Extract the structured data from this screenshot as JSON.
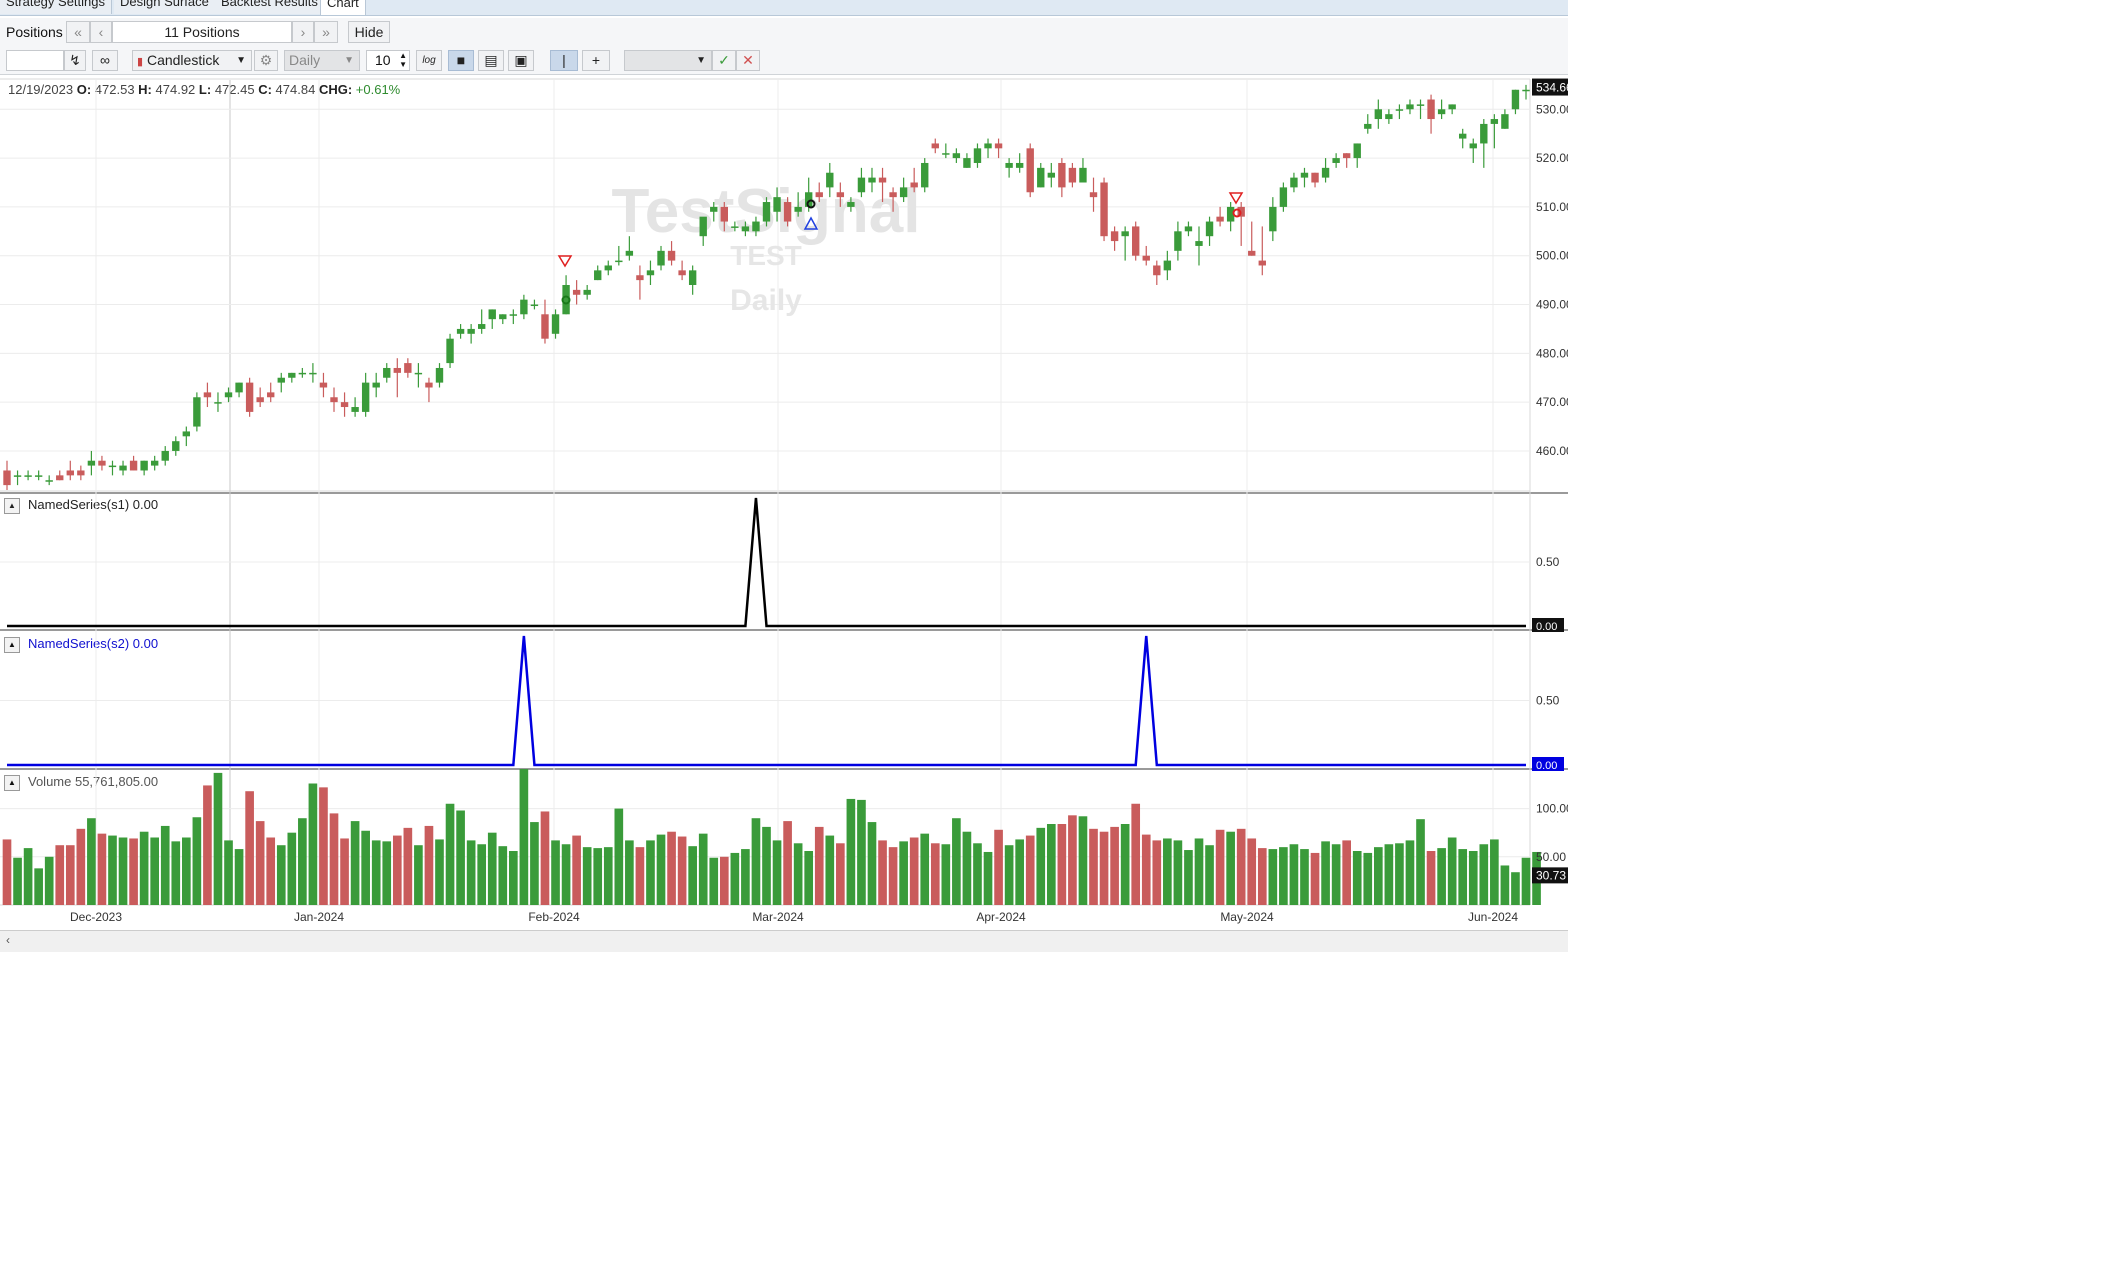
{
  "tabs": [
    {
      "label": "Strategy Settings"
    },
    {
      "label": "Design Surface"
    },
    {
      "label": "Backtest Results"
    },
    {
      "label": "Chart"
    }
  ],
  "positions": {
    "label": "Positions",
    "count_text": "11 Positions",
    "hide_label": "Hide"
  },
  "toolbar": {
    "chart_style": "Candlestick",
    "scale": "Daily",
    "bars_value": "10",
    "log_label": "log"
  },
  "ohlc": {
    "date": "12/19/2023",
    "o_label": "O:",
    "o": "472.53",
    "h_label": "H:",
    "h": "474.92",
    "l_label": "L:",
    "l": "472.45",
    "c_label": "C:",
    "c": "474.84",
    "chg_label": "CHG:",
    "chg": "+0.61%"
  },
  "watermark": {
    "line1": "TestSignal",
    "line2": "TEST",
    "line3": "Daily"
  },
  "price_axis": {
    "ticks": [
      "530.00",
      "520.00",
      "510.00",
      "500.00",
      "490.00",
      "480.00",
      "470.00",
      "460.00"
    ],
    "last": "534.66"
  },
  "panels": {
    "s1": {
      "label": "NamedSeries(s1) 0.00",
      "tick": "0.50",
      "last": "0.00"
    },
    "s2": {
      "label": "NamedSeries(s2) 0.00",
      "tick": "0.50",
      "last": "0.00"
    },
    "volume": {
      "label": "Volume 55,761,805.00",
      "ticks": [
        "100.00",
        "50.00"
      ],
      "last": "30.73"
    }
  },
  "x_axis": [
    "Dec-2023",
    "Jan-2024",
    "Feb-2024",
    "Mar-2024",
    "Apr-2024",
    "May-2024",
    "Jun-2024"
  ],
  "colors": {
    "up": "#3a9b3a",
    "down": "#c95c5c",
    "s1": "#000000",
    "s2": "#0000e0"
  },
  "chart_data": {
    "type": "candlestick",
    "ylim": [
      452,
      536
    ],
    "bars": [
      [
        456,
        458,
        452,
        453
      ],
      [
        455,
        456,
        453,
        455
      ],
      [
        455,
        456,
        454,
        455
      ],
      [
        455,
        456,
        454,
        455
      ],
      [
        454,
        455,
        453,
        454
      ],
      [
        455,
        456,
        454,
        454
      ],
      [
        456,
        458,
        454,
        455
      ],
      [
        456,
        457,
        454,
        455
      ],
      [
        457,
        460,
        455,
        458
      ],
      [
        458,
        459,
        456,
        457
      ],
      [
        457,
        458,
        455,
        457
      ],
      [
        456,
        458,
        455,
        457
      ],
      [
        458,
        459,
        456,
        456
      ],
      [
        456,
        458,
        455,
        458
      ],
      [
        457,
        459,
        456,
        458
      ],
      [
        458,
        461,
        457,
        460
      ],
      [
        460,
        463,
        459,
        462
      ],
      [
        463,
        465,
        461,
        464
      ],
      [
        465,
        472,
        464,
        471
      ],
      [
        472,
        474,
        469,
        471
      ],
      [
        470,
        472,
        468,
        470
      ],
      [
        471,
        473,
        470,
        472
      ],
      [
        472,
        474,
        471,
        474
      ],
      [
        474,
        475,
        467,
        468
      ],
      [
        471,
        473,
        469,
        470
      ],
      [
        472,
        474,
        470,
        471
      ],
      [
        474,
        476,
        472,
        475
      ],
      [
        475,
        476,
        474,
        476
      ],
      [
        476,
        477,
        475,
        476
      ],
      [
        476,
        478,
        474,
        476
      ],
      [
        474,
        476,
        471,
        473
      ],
      [
        471,
        473,
        468,
        470
      ],
      [
        470,
        472,
        467,
        469
      ],
      [
        468,
        471,
        467,
        469
      ],
      [
        468,
        476,
        467,
        474
      ],
      [
        473,
        476,
        471,
        474
      ],
      [
        475,
        478,
        474,
        477
      ],
      [
        477,
        479,
        471,
        476
      ],
      [
        478,
        479,
        475,
        476
      ],
      [
        476,
        478,
        473,
        476
      ],
      [
        474,
        475,
        470,
        473
      ],
      [
        474,
        478,
        473,
        477
      ],
      [
        478,
        484,
        477,
        483
      ],
      [
        484,
        486,
        483,
        485
      ],
      [
        484,
        486,
        482,
        485
      ],
      [
        485,
        489,
        484,
        486
      ],
      [
        487,
        489,
        485,
        489
      ],
      [
        487,
        488,
        486,
        488
      ],
      [
        488,
        489,
        486,
        488
      ],
      [
        488,
        492,
        487,
        491
      ],
      [
        490,
        491,
        489,
        490
      ],
      [
        488,
        491,
        482,
        483
      ],
      [
        484,
        489,
        483,
        488
      ],
      [
        488,
        496,
        488,
        494
      ],
      [
        493,
        495,
        490,
        492
      ],
      [
        492,
        494,
        491,
        493
      ],
      [
        495,
        498,
        495,
        497
      ],
      [
        497,
        499,
        496,
        498
      ],
      [
        499,
        502,
        498,
        499
      ],
      [
        500,
        504,
        499,
        501
      ],
      [
        496,
        498,
        491,
        495
      ],
      [
        496,
        499,
        494,
        497
      ],
      [
        498,
        502,
        497,
        501
      ],
      [
        501,
        503,
        498,
        499
      ],
      [
        497,
        499,
        495,
        496
      ],
      [
        494,
        498,
        492,
        497
      ],
      [
        504,
        507,
        502,
        508
      ],
      [
        509,
        511,
        507,
        510
      ],
      [
        510,
        511,
        505,
        507
      ],
      [
        506,
        507,
        505,
        506
      ],
      [
        505,
        507,
        504,
        506
      ],
      [
        505,
        508,
        504,
        507
      ],
      [
        507,
        512,
        506,
        511
      ],
      [
        509,
        514,
        507,
        512
      ],
      [
        511,
        512,
        506,
        507
      ],
      [
        509,
        513,
        508,
        510
      ],
      [
        510,
        516,
        509,
        513
      ],
      [
        513,
        515,
        511,
        512
      ],
      [
        514,
        519,
        512,
        517
      ],
      [
        513,
        515,
        510,
        512
      ],
      [
        510,
        512,
        509,
        511
      ],
      [
        513,
        518,
        512,
        516
      ],
      [
        515,
        518,
        513,
        516
      ],
      [
        516,
        518,
        511,
        515
      ],
      [
        513,
        514,
        509,
        512
      ],
      [
        512,
        516,
        511,
        514
      ],
      [
        515,
        518,
        513,
        514
      ],
      [
        514,
        520,
        513,
        519
      ],
      [
        523,
        524,
        521,
        522
      ],
      [
        521,
        523,
        520,
        521
      ],
      [
        520,
        522,
        519,
        521
      ],
      [
        518,
        521,
        518,
        520
      ],
      [
        519,
        523,
        518,
        522
      ],
      [
        522,
        524,
        520,
        523
      ],
      [
        523,
        524,
        520,
        522
      ],
      [
        518,
        520,
        516,
        519
      ],
      [
        518,
        521,
        517,
        519
      ],
      [
        522,
        523,
        512,
        513
      ],
      [
        514,
        519,
        514,
        518
      ],
      [
        516,
        519,
        514,
        517
      ],
      [
        519,
        520,
        512,
        514
      ],
      [
        518,
        519,
        514,
        515
      ],
      [
        515,
        520,
        515,
        518
      ],
      [
        513,
        516,
        509,
        512
      ],
      [
        515,
        516,
        503,
        504
      ],
      [
        505,
        506,
        501,
        503
      ],
      [
        504,
        506,
        499,
        505
      ],
      [
        506,
        507,
        499,
        500
      ],
      [
        500,
        502,
        498,
        499
      ],
      [
        498,
        499,
        494,
        496
      ],
      [
        497,
        501,
        495,
        499
      ],
      [
        501,
        507,
        499,
        505
      ],
      [
        505,
        507,
        504,
        506
      ],
      [
        502,
        506,
        498,
        503
      ],
      [
        504,
        508,
        502,
        507
      ],
      [
        508,
        510,
        506,
        507
      ],
      [
        507,
        511,
        505,
        510
      ],
      [
        510,
        511,
        502,
        508
      ],
      [
        501,
        507,
        500,
        500
      ],
      [
        499,
        506,
        496,
        498
      ],
      [
        505,
        512,
        503,
        510
      ],
      [
        510,
        515,
        509,
        514
      ],
      [
        514,
        517,
        513,
        516
      ],
      [
        516,
        518,
        514,
        517
      ],
      [
        517,
        517,
        514,
        515
      ],
      [
        516,
        520,
        515,
        518
      ],
      [
        519,
        521,
        518,
        520
      ],
      [
        521,
        521,
        518,
        520
      ],
      [
        520,
        523,
        518,
        523
      ],
      [
        526,
        529,
        525,
        527
      ],
      [
        528,
        532,
        526,
        530
      ],
      [
        528,
        530,
        527,
        529
      ],
      [
        530,
        531,
        528,
        530
      ],
      [
        530,
        532,
        529,
        531
      ],
      [
        531,
        532,
        528,
        531
      ],
      [
        532,
        533,
        525,
        528
      ],
      [
        529,
        532,
        528,
        530
      ],
      [
        530,
        531,
        529,
        531
      ],
      [
        524,
        526,
        522,
        525
      ],
      [
        522,
        524,
        519,
        523
      ],
      [
        523,
        528,
        518,
        527
      ],
      [
        527,
        529,
        522,
        528
      ],
      [
        526,
        530,
        526,
        529
      ],
      [
        530,
        534,
        529,
        534
      ],
      [
        534,
        535,
        532,
        534
      ]
    ],
    "s1": {
      "spike_index": 71
    },
    "s2": {
      "spike_indices": [
        49,
        108
      ]
    },
    "volume": [
      68,
      49,
      59,
      38,
      50,
      62,
      62,
      79,
      90,
      74,
      72,
      70,
      69,
      76,
      70,
      82,
      66,
      70,
      91,
      124,
      137,
      67,
      58,
      118,
      87,
      70,
      62,
      75,
      90,
      126,
      122,
      95,
      69,
      87,
      77,
      67,
      66,
      72,
      80,
      62,
      82,
      68,
      105,
      98,
      67,
      63,
      75,
      61,
      56,
      141,
      86,
      97,
      67,
      63,
      72,
      60,
      59,
      60,
      100,
      67,
      60,
      67,
      73,
      76,
      71,
      61,
      74,
      49,
      50,
      54,
      58,
      90,
      81,
      67,
      87,
      64,
      56,
      81,
      72,
      64,
      110,
      109,
      86,
      67,
      60,
      66,
      70,
      74,
      64,
      63,
      90,
      76,
      64,
      55,
      78,
      62,
      68,
      72,
      80,
      84,
      84,
      93,
      92,
      79,
      76,
      81,
      84,
      105,
      73,
      67,
      69,
      67,
      57,
      69,
      62,
      78,
      76,
      79,
      69,
      59,
      58,
      60,
      63,
      58,
      54,
      66,
      63,
      67,
      56,
      54,
      60,
      63,
      64,
      67,
      89,
      56,
      59,
      70,
      58,
      56,
      63,
      68,
      41,
      34,
      49,
      55
    ],
    "volume_ylim": [
      0,
      140
    ]
  }
}
